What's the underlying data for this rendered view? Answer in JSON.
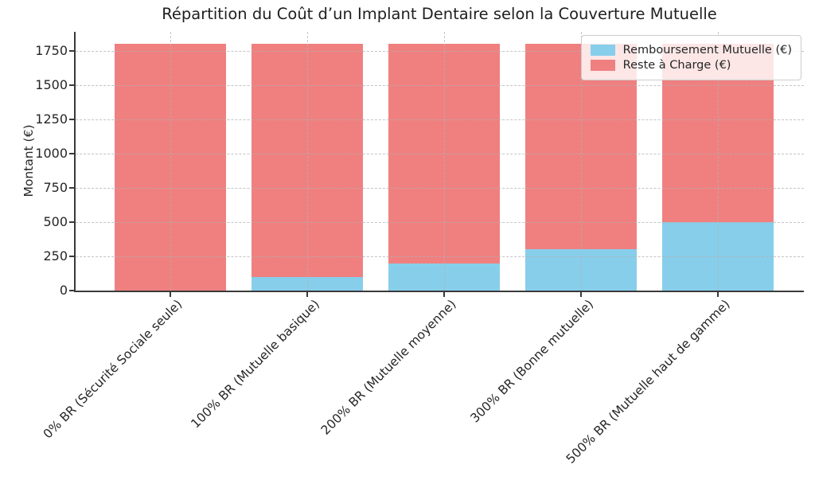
{
  "chart_data": {
    "type": "bar",
    "stacked": true,
    "title": "Répartition du Coût d’un Implant Dentaire selon la Couverture Mutuelle",
    "xlabel": "",
    "ylabel": "Montant (€)",
    "categories": [
      "0% BR (Sécurité Sociale seule)",
      "100% BR (Mutuelle basique)",
      "200% BR (Mutuelle moyenne)",
      "300% BR (Bonne mutuelle)",
      "500% BR (Mutuelle haut de gamme)"
    ],
    "series": [
      {
        "name": "Remboursement Mutuelle (€)",
        "color": "#87CEEB",
        "values": [
          0,
          100,
          200,
          300,
          500
        ]
      },
      {
        "name": "Reste à Charge (€)",
        "color": "#F08080",
        "values": [
          1800,
          1700,
          1600,
          1500,
          1300
        ]
      }
    ],
    "totals": [
      1800,
      1800,
      1800,
      1800,
      1800
    ],
    "y_ticks": [
      0,
      250,
      500,
      750,
      1000,
      1250,
      1500,
      1750
    ],
    "ylim": [
      0,
      1890
    ],
    "grid": {
      "axis": "both",
      "style": "dashed",
      "color": "#b0b0b0",
      "alpha": 0.7
    },
    "legend": {
      "position": "upper right"
    }
  }
}
